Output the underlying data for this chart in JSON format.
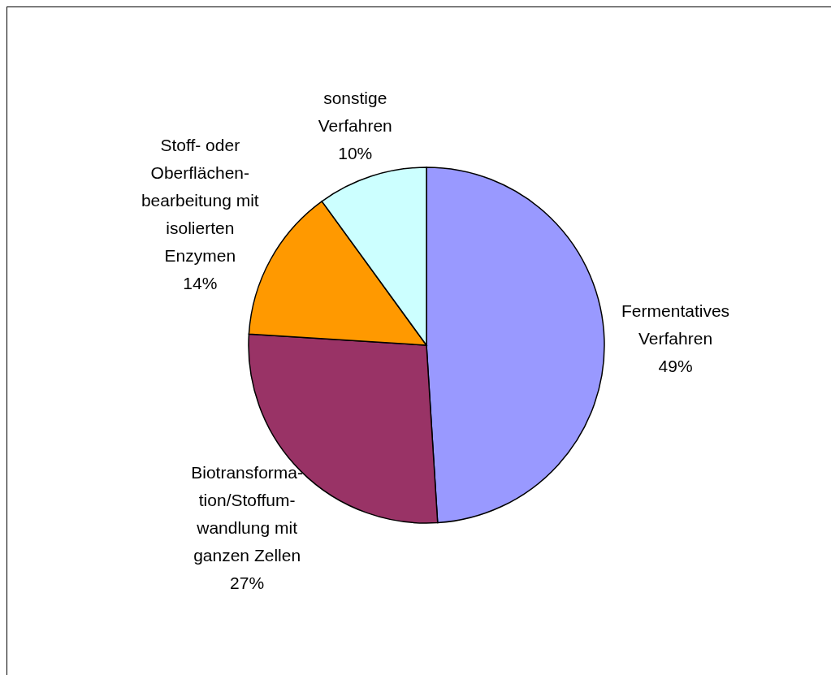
{
  "chart_data": {
    "type": "pie",
    "categories": [
      "Fermentatives\nVerfahren",
      "Biotransforma-\ntion/Stoffum-\nwandlung mit\nganzen Zellen",
      "Stoff- oder\nOberflächen-\nbearbeitung mit\nisolierten\nEnzymen",
      "sonstige\nVerfahren"
    ],
    "values": [
      49,
      27,
      14,
      10
    ],
    "value_labels": [
      "49%",
      "27%",
      "14%",
      "10%"
    ],
    "colors": [
      "#9999ff",
      "#993366",
      "#ff9900",
      "#ccffff"
    ],
    "legend": false
  }
}
